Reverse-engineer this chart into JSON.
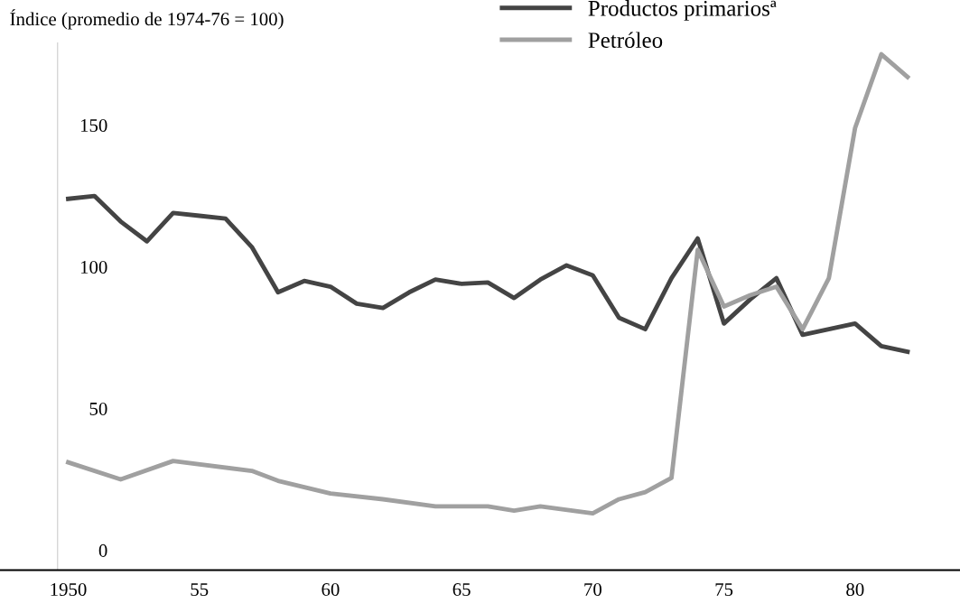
{
  "chart_data": {
    "type": "line",
    "ylabel": "Índice (promedio de 1974-76 = 100)",
    "series": [
      {
        "name": "Productos primariosª",
        "color": "#444444",
        "x": [
          1950,
          1951,
          1952,
          1953,
          1954,
          1955,
          1956,
          1957,
          1958,
          1959,
          1960,
          1961,
          1962,
          1963,
          1964,
          1965,
          1966,
          1967,
          1968,
          1969,
          1970,
          1971,
          1972,
          1973,
          1974,
          1975,
          1976,
          1977,
          1978,
          1979,
          1980,
          1981,
          1982
        ],
        "values": [
          124,
          125,
          116,
          109,
          119,
          118,
          117,
          107,
          91,
          95,
          93,
          87,
          85.5,
          91,
          95.5,
          94,
          94.5,
          89,
          95.5,
          100.5,
          97,
          82,
          78,
          96,
          110,
          80,
          88.5,
          96,
          76,
          78,
          80,
          72,
          70
        ]
      },
      {
        "name": "Petróleo",
        "color": "#a0a0a0",
        "x": [
          1950,
          1952,
          1954,
          1957,
          1958,
          1960,
          1962,
          1964,
          1966,
          1967,
          1968,
          1970,
          1971,
          1972,
          1973,
          1974,
          1975,
          1976,
          1977,
          1978,
          1979,
          1980,
          1981,
          1982
        ],
        "values": [
          31,
          25,
          31.5,
          28,
          24.5,
          20,
          18,
          15.5,
          15.5,
          14,
          15.5,
          13,
          18,
          20.5,
          25.5,
          106,
          86,
          90,
          93,
          78,
          96,
          149,
          175,
          167
        ]
      }
    ],
    "xlim": [
      1947.4,
      1984
    ],
    "xticks": [
      {
        "value": 1950,
        "label": "1950"
      },
      {
        "value": 1955,
        "label": "55"
      },
      {
        "value": 1960,
        "label": "60"
      },
      {
        "value": 1965,
        "label": "65"
      },
      {
        "value": 1970,
        "label": "70"
      },
      {
        "value": 1975,
        "label": "75"
      },
      {
        "value": 1980,
        "label": "80"
      }
    ],
    "ylim": [
      -7,
      179
    ],
    "yticks": [
      0,
      50,
      100,
      150
    ],
    "grid": false,
    "legend": "top right",
    "marker": "none",
    "line_style": "solid"
  }
}
